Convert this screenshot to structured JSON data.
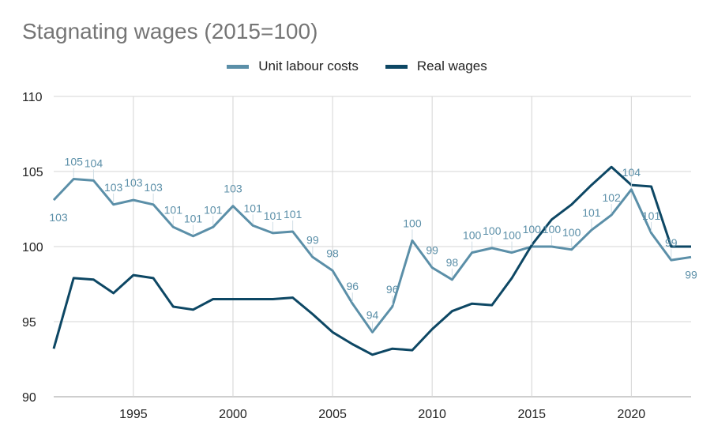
{
  "chart_data": {
    "type": "line",
    "title": "Stagnating wages (2015=100)",
    "xlabel": "",
    "ylabel": "",
    "x": [
      1991,
      1992,
      1993,
      1994,
      1995,
      1996,
      1997,
      1998,
      1999,
      2000,
      2001,
      2002,
      2003,
      2004,
      2005,
      2006,
      2007,
      2008,
      2009,
      2010,
      2011,
      2012,
      2013,
      2014,
      2015,
      2016,
      2017,
      2018,
      2019,
      2020,
      2021,
      2022,
      2023
    ],
    "xlim": [
      1991,
      2023
    ],
    "ylim": [
      90,
      110
    ],
    "x_ticks": [
      1995,
      2000,
      2005,
      2010,
      2015,
      2020
    ],
    "y_ticks": [
      90,
      95,
      100,
      105,
      110
    ],
    "grid": true,
    "legend_position": "top",
    "series": [
      {
        "name": "Unit labour costs",
        "color": "#5b8fa8",
        "values": [
          103.1,
          104.5,
          104.4,
          102.8,
          103.1,
          102.8,
          101.3,
          100.7,
          101.3,
          102.7,
          101.4,
          100.9,
          101.0,
          99.3,
          98.4,
          96.2,
          94.3,
          96.0,
          100.4,
          98.6,
          97.8,
          99.6,
          99.9,
          99.6,
          100.0,
          100.0,
          99.8,
          101.1,
          102.1,
          103.8,
          100.9,
          99.1,
          99.3
        ],
        "labels": [
          "103",
          "105",
          "104",
          "103",
          "103",
          "103",
          "101",
          "101",
          "101",
          "103",
          "101",
          "101",
          "101",
          "99",
          "98",
          "96",
          "94",
          "96",
          "100",
          "99",
          "98",
          "100",
          "100",
          "100",
          "100",
          "100",
          "100",
          "101",
          "102",
          "104",
          "101",
          "99",
          "99"
        ]
      },
      {
        "name": "Real wages",
        "color": "#0d4764",
        "values": [
          93.2,
          97.9,
          97.8,
          96.9,
          98.1,
          97.9,
          96.0,
          95.8,
          96.5,
          96.5,
          96.5,
          96.5,
          96.6,
          95.5,
          94.3,
          93.5,
          92.8,
          93.2,
          93.1,
          94.5,
          95.7,
          96.2,
          96.1,
          97.9,
          100.1,
          101.8,
          102.8,
          104.1,
          105.3,
          104.1,
          104.0,
          100.0,
          100.0
        ]
      }
    ]
  }
}
